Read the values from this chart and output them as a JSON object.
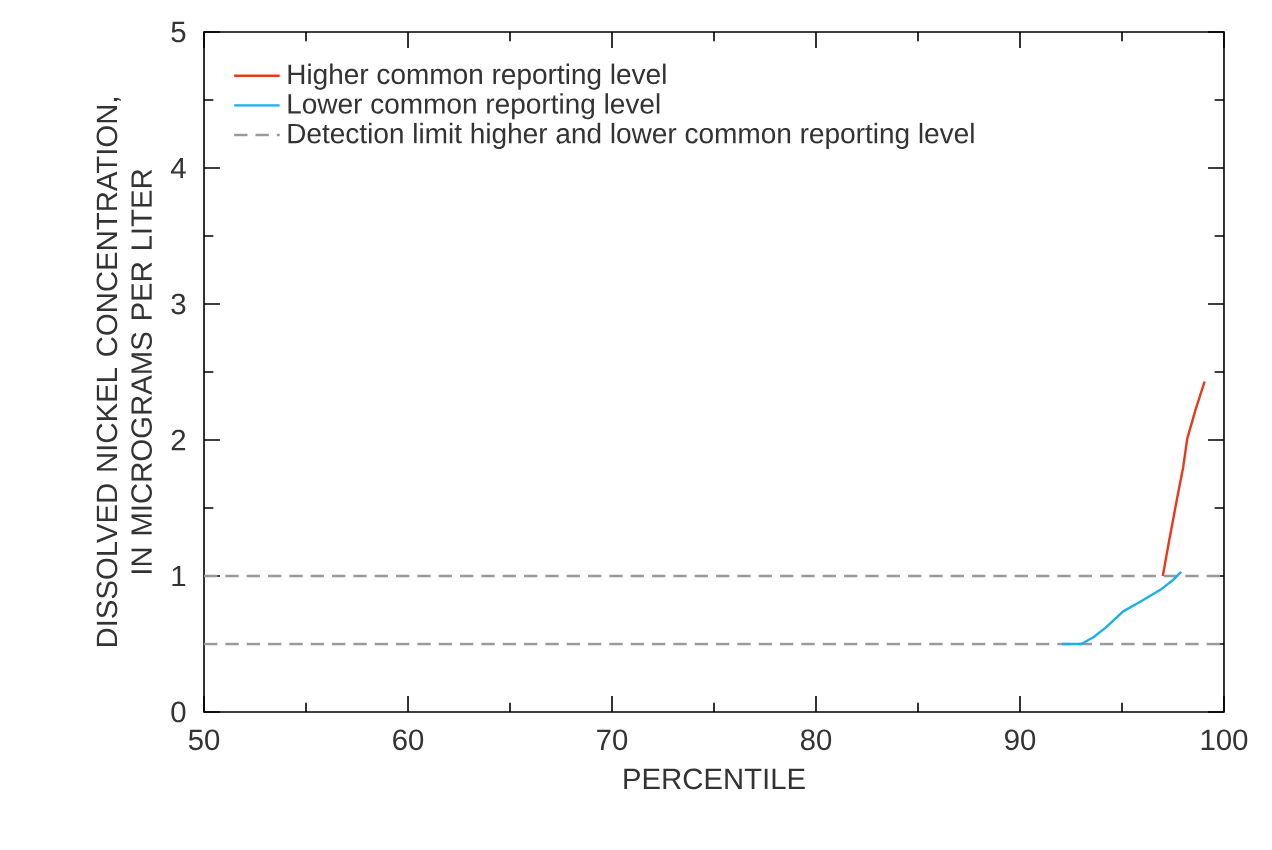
{
  "chart_data": {
    "type": "line",
    "xlabel": "PERCENTILE",
    "ylabel": "DISSOLVED NICKEL CONCENTRATION, IN MICROGRAMS PER LITER",
    "xlim": [
      50,
      100
    ],
    "xticks": [
      50,
      60,
      70,
      80,
      90,
      100
    ],
    "ylim": [
      0,
      5
    ],
    "yticks": [
      0,
      1,
      2,
      3,
      4,
      5
    ],
    "legend": "top left",
    "marker": "none",
    "series": [
      {
        "name": "Higher common reporting level",
        "color": "#e8391d",
        "line_style": "solid",
        "x": [
          97.0,
          97.3,
          97.7,
          98.0,
          98.2,
          98.6,
          99.05
        ],
        "values": [
          1.0,
          1.25,
          1.57,
          1.8,
          2.01,
          2.22,
          2.43
        ]
      },
      {
        "name": "Lower common reporting level",
        "color": "#1ab0e8",
        "line_style": "solid",
        "x": [
          92.06,
          93.0,
          93.6,
          94.2,
          95.06,
          96.0,
          96.9,
          97.5,
          97.9
        ],
        "values": [
          0.5,
          0.5,
          0.55,
          0.62,
          0.74,
          0.82,
          0.9,
          0.97,
          1.03
        ]
      }
    ],
    "ref_lines": [
      {
        "axis": "y",
        "value": 1,
        "label": "Detection limit higher and lower common reporting level",
        "color": "#999999",
        "line_style": "dashed"
      },
      {
        "axis": "y",
        "value": 0.5,
        "color": "#999999",
        "line_style": "dashed"
      }
    ]
  }
}
